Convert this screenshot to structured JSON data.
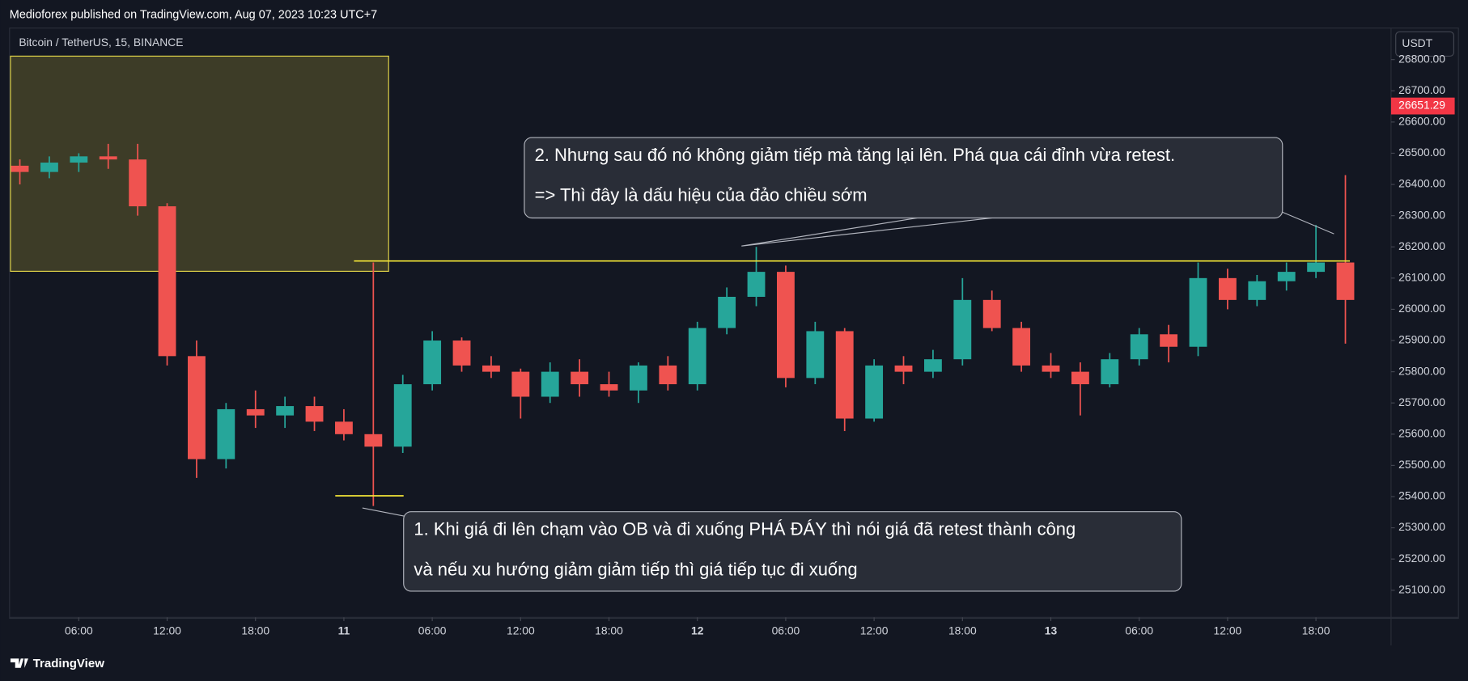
{
  "header": {
    "title": "Medioforex published on TradingView.com, Aug 07, 2023 10:23 UTC+7"
  },
  "footer": {
    "brand": "TradingView"
  },
  "chart_data": {
    "type": "candlestick",
    "symbol": "Bitcoin / TetherUS, 15, BINANCE",
    "currency": "USDT",
    "last_price": 26651.29,
    "up_color": "#26a69a",
    "down_color": "#ef5350",
    "last_price_color": "#f23645",
    "annotations": [
      [
        "2. Nhưng sau đó nó không giảm tiếp mà tăng lại lên. Phá qua cái đỉnh vừa retest.",
        "=> Thì đây là dấu hiệu của đảo chiều sớm"
      ],
      [
        "1. Khi giá đi lên chạm vào OB và đi xuống PHÁ ĐÁY thì nói giá đã retest thành công",
        "và nếu xu hướng giảm giảm tiếp thì giá tiếp tục đi xuống"
      ]
    ],
    "x": [
      2,
      4,
      6,
      8,
      10,
      12,
      14,
      16,
      18,
      20,
      22,
      24,
      26,
      28,
      30,
      32,
      34,
      36,
      38,
      40,
      42,
      44,
      46,
      48,
      50,
      52,
      54,
      56,
      58,
      60,
      62,
      64,
      66,
      68,
      70,
      72,
      74,
      76,
      78,
      80,
      82,
      84,
      86,
      88,
      90,
      92
    ],
    "open": [
      26460,
      26440,
      26470,
      26490,
      26480,
      26330,
      25850,
      25520,
      25680,
      25660,
      25690,
      25640,
      25600,
      25560,
      25760,
      25900,
      25820,
      25800,
      25720,
      25800,
      25760,
      25740,
      25820,
      25760,
      25940,
      26040,
      26120,
      25780,
      25930,
      25650,
      25820,
      25800,
      25840,
      26030,
      25940,
      25820,
      25800,
      25760,
      25840,
      25920,
      25880,
      26100,
      26030,
      26090,
      26120,
      26150
    ],
    "high": [
      26480,
      26490,
      26500,
      26530,
      26530,
      26340,
      25900,
      25700,
      25740,
      25720,
      25720,
      25680,
      26150,
      25790,
      25930,
      25910,
      25850,
      25810,
      25830,
      25840,
      25800,
      25830,
      25850,
      25960,
      26070,
      26200,
      26140,
      25960,
      25940,
      25840,
      25850,
      25870,
      26100,
      26060,
      25960,
      25860,
      25830,
      25860,
      25940,
      25950,
      26150,
      26130,
      26110,
      26150,
      26270,
      26430
    ],
    "low": [
      26400,
      26420,
      26440,
      26450,
      26300,
      25820,
      25460,
      25490,
      25620,
      25620,
      25610,
      25580,
      25370,
      25540,
      25740,
      25800,
      25780,
      25650,
      25700,
      25720,
      25720,
      25700,
      25740,
      25740,
      25920,
      26010,
      25750,
      25760,
      25610,
      25640,
      25760,
      25780,
      25820,
      25930,
      25800,
      25780,
      25660,
      25750,
      25820,
      25830,
      25850,
      26000,
      26010,
      26060,
      26100,
      25890
    ],
    "close": [
      26440,
      26470,
      26490,
      26480,
      26330,
      25850,
      25520,
      25680,
      25660,
      25690,
      25640,
      25600,
      25560,
      25760,
      25900,
      25820,
      25800,
      25720,
      25800,
      25760,
      25740,
      25820,
      25760,
      25940,
      26040,
      26120,
      25780,
      25930,
      25650,
      25820,
      25800,
      25840,
      26030,
      25940,
      25820,
      25800,
      25760,
      25840,
      25920,
      25880,
      26100,
      26030,
      26090,
      26120,
      26150,
      26030
    ],
    "xlim": [
      1.3,
      95.1
    ],
    "ylim": [
      25013,
      26901
    ],
    "xticks": [
      {
        "value": 6,
        "label": "06:00"
      },
      {
        "value": 12,
        "label": "12:00"
      },
      {
        "value": 18,
        "label": "18:00"
      },
      {
        "value": 24,
        "label": "11"
      },
      {
        "value": 30,
        "label": "06:00"
      },
      {
        "value": 36,
        "label": "12:00"
      },
      {
        "value": 42,
        "label": "18:00"
      },
      {
        "value": 48,
        "label": "12"
      },
      {
        "value": 54,
        "label": "06:00"
      },
      {
        "value": 60,
        "label": "12:00"
      },
      {
        "value": 66,
        "label": "18:00"
      },
      {
        "value": 72,
        "label": "13"
      },
      {
        "value": 78,
        "label": "06:00"
      },
      {
        "value": 84,
        "label": "12:00"
      },
      {
        "value": 90,
        "label": "18:00"
      }
    ],
    "yticks": [
      {
        "value": 25100,
        "label": "25100.00"
      },
      {
        "value": 25200,
        "label": "25200.00"
      },
      {
        "value": 25300,
        "label": "25300.00"
      },
      {
        "value": 25400,
        "label": "25400.00"
      },
      {
        "value": 25500,
        "label": "25500.00"
      },
      {
        "value": 25600,
        "label": "25600.00"
      },
      {
        "value": 25700,
        "label": "25700.00"
      },
      {
        "value": 25800,
        "label": "25800.00"
      },
      {
        "value": 25900,
        "label": "25900.00"
      },
      {
        "value": 26000,
        "label": "26000.00"
      },
      {
        "value": 26100,
        "label": "26100.00"
      },
      {
        "value": 26200,
        "label": "26200.00"
      },
      {
        "value": 26300,
        "label": "26300.00"
      },
      {
        "value": 26400,
        "label": "26400.00"
      },
      {
        "value": 26500,
        "label": "26500.00"
      },
      {
        "value": 26600,
        "label": "26600.00"
      },
      {
        "value": 26700,
        "label": "26700.00"
      },
      {
        "value": 26800,
        "label": "26800.00"
      }
    ]
  }
}
